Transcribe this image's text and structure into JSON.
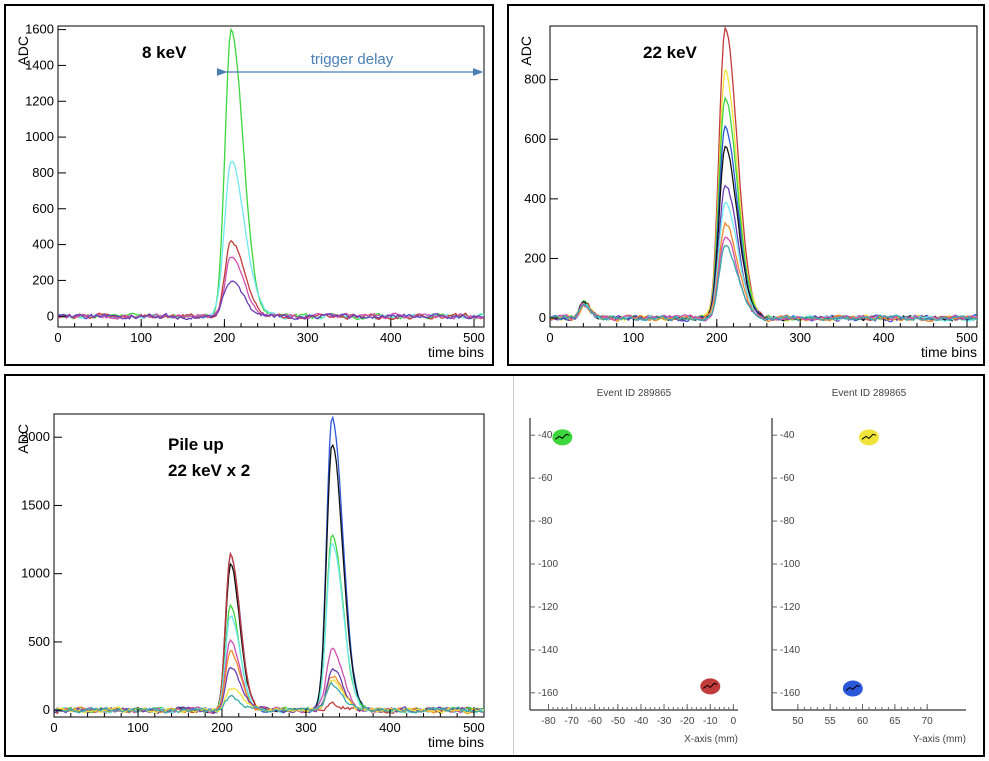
{
  "colors": {
    "green": "#3dd63d",
    "cyan": "#6fe8ef",
    "red": "#c23b3b",
    "magenta": "#d050b0",
    "purple": "#6a3fb5",
    "blue": "#2b57d9",
    "black": "#111111",
    "yellow": "#f0e43a",
    "orange": "#f08a2a",
    "teal": "#3aa9a9",
    "arrow": "#4a7fb5"
  },
  "chart_data": [
    {
      "id": "plot-8kev",
      "type": "line",
      "title": "",
      "annotation": "8 keV",
      "trigger_label": "trigger delay",
      "trigger_range": [
        190,
        512
      ],
      "xlabel": "time bins",
      "ylabel": "ADC",
      "xlim": [
        0,
        512
      ],
      "ylim": [
        -60,
        1620
      ],
      "xticks": [
        0,
        100,
        200,
        300,
        400,
        500
      ],
      "yticks": [
        0,
        200,
        400,
        600,
        800,
        1000,
        1200,
        1400,
        1600
      ],
      "series": [
        {
          "name": "green",
          "color": "green",
          "peaks": [
            {
              "x": 208,
              "amp": 1600,
              "w": 9
            }
          ]
        },
        {
          "name": "cyan",
          "color": "cyan",
          "peaks": [
            {
              "x": 208,
              "amp": 870,
              "w": 10
            }
          ]
        },
        {
          "name": "red",
          "color": "red",
          "peaks": [
            {
              "x": 208,
              "amp": 430,
              "w": 9
            }
          ]
        },
        {
          "name": "magenta",
          "color": "magenta",
          "peaks": [
            {
              "x": 208,
              "amp": 340,
              "w": 9
            }
          ]
        },
        {
          "name": "purple",
          "color": "purple",
          "peaks": [
            {
              "x": 206,
              "amp": 200,
              "w": 9
            }
          ]
        }
      ]
    },
    {
      "id": "plot-22kev",
      "type": "line",
      "title": "",
      "annotation": "22 keV",
      "xlabel": "time bins",
      "ylabel": "ADC",
      "xlim": [
        0,
        512
      ],
      "ylim": [
        -30,
        980
      ],
      "xticks": [
        0,
        100,
        200,
        300,
        400,
        500
      ],
      "yticks": [
        0,
        200,
        400,
        600,
        800
      ],
      "series": [
        {
          "name": "red",
          "color": "red",
          "peaks": [
            {
              "x": 210,
              "amp": 975,
              "w": 9
            },
            {
              "x": 40,
              "amp": 50,
              "w": 5
            }
          ]
        },
        {
          "name": "yellow",
          "color": "yellow",
          "peaks": [
            {
              "x": 210,
              "amp": 830,
              "w": 9
            },
            {
              "x": 40,
              "amp": 48,
              "w": 5
            }
          ]
        },
        {
          "name": "green",
          "color": "green",
          "peaks": [
            {
              "x": 210,
              "amp": 745,
              "w": 9
            },
            {
              "x": 40,
              "amp": 52,
              "w": 5
            }
          ]
        },
        {
          "name": "blue",
          "color": "blue",
          "peaks": [
            {
              "x": 210,
              "amp": 640,
              "w": 9
            },
            {
              "x": 40,
              "amp": 46,
              "w": 5
            }
          ]
        },
        {
          "name": "black",
          "color": "black",
          "peaks": [
            {
              "x": 210,
              "amp": 570,
              "w": 9
            },
            {
              "x": 40,
              "amp": 55,
              "w": 5
            }
          ]
        },
        {
          "name": "purple",
          "color": "purple",
          "peaks": [
            {
              "x": 210,
              "amp": 450,
              "w": 9
            },
            {
              "x": 40,
              "amp": 44,
              "w": 5
            }
          ]
        },
        {
          "name": "cyan",
          "color": "cyan",
          "peaks": [
            {
              "x": 210,
              "amp": 390,
              "w": 9
            },
            {
              "x": 40,
              "amp": 50,
              "w": 5
            }
          ]
        },
        {
          "name": "orange",
          "color": "orange",
          "peaks": [
            {
              "x": 210,
              "amp": 320,
              "w": 9
            },
            {
              "x": 40,
              "amp": 42,
              "w": 5
            }
          ]
        },
        {
          "name": "magenta",
          "color": "magenta",
          "peaks": [
            {
              "x": 210,
              "amp": 280,
              "w": 9
            },
            {
              "x": 40,
              "amp": 47,
              "w": 5
            }
          ]
        },
        {
          "name": "teal",
          "color": "teal",
          "peaks": [
            {
              "x": 210,
              "amp": 240,
              "w": 9
            },
            {
              "x": 40,
              "amp": 45,
              "w": 5
            }
          ]
        }
      ]
    },
    {
      "id": "plot-pileup",
      "type": "line",
      "title": "",
      "annotation_line1": "Pile up",
      "annotation_line2": "22 keV x 2",
      "xlabel": "time bins",
      "ylabel": "ADC",
      "xlim": [
        0,
        512
      ],
      "ylim": [
        -50,
        2170
      ],
      "xticks": [
        0,
        100,
        200,
        300,
        400,
        500
      ],
      "yticks": [
        0,
        500,
        1000,
        1500,
        2000
      ],
      "series": [
        {
          "name": "blue",
          "color": "blue",
          "peaks": [
            {
              "x": 210,
              "amp": 1150,
              "w": 7
            },
            {
              "x": 331,
              "amp": 2150,
              "w": 8
            }
          ]
        },
        {
          "name": "black",
          "color": "black",
          "peaks": [
            {
              "x": 210,
              "amp": 1070,
              "w": 7
            },
            {
              "x": 331,
              "amp": 1960,
              "w": 8
            }
          ]
        },
        {
          "name": "red",
          "color": "red",
          "peaks": [
            {
              "x": 210,
              "amp": 1170,
              "w": 7
            },
            {
              "x": 331,
              "amp": 40,
              "w": 8
            }
          ]
        },
        {
          "name": "green",
          "color": "green",
          "peaks": [
            {
              "x": 210,
              "amp": 760,
              "w": 7
            },
            {
              "x": 331,
              "amp": 1290,
              "w": 8
            }
          ]
        },
        {
          "name": "cyan",
          "color": "cyan",
          "peaks": [
            {
              "x": 210,
              "amp": 700,
              "w": 7
            },
            {
              "x": 331,
              "amp": 1240,
              "w": 8
            }
          ]
        },
        {
          "name": "magenta",
          "color": "magenta",
          "peaks": [
            {
              "x": 210,
              "amp": 520,
              "w": 7
            },
            {
              "x": 331,
              "amp": 450,
              "w": 8
            }
          ]
        },
        {
          "name": "orange",
          "color": "orange",
          "peaks": [
            {
              "x": 210,
              "amp": 440,
              "w": 7
            },
            {
              "x": 331,
              "amp": 250,
              "w": 8
            }
          ]
        },
        {
          "name": "purple",
          "color": "purple",
          "peaks": [
            {
              "x": 210,
              "amp": 340,
              "w": 7
            },
            {
              "x": 331,
              "amp": 300,
              "w": 8
            }
          ]
        },
        {
          "name": "yellow",
          "color": "yellow",
          "peaks": [
            {
              "x": 210,
              "amp": 160,
              "w": 7
            },
            {
              "x": 331,
              "amp": 220,
              "w": 8
            }
          ]
        },
        {
          "name": "teal",
          "color": "teal",
          "peaks": [
            {
              "x": 210,
              "amp": 100,
              "w": 7
            },
            {
              "x": 331,
              "amp": 180,
              "w": 8
            }
          ]
        }
      ]
    },
    {
      "id": "plot-event-x",
      "type": "scatter",
      "title": "Event ID 289865",
      "xlabel": "X-axis (mm)",
      "ylabel": "",
      "xlim": [
        -88,
        2
      ],
      "ylim": [
        -168,
        -32
      ],
      "xticks": [
        -80,
        -70,
        -60,
        -50,
        -40,
        -30,
        -20,
        -10,
        0
      ],
      "yticks": [
        -40,
        -60,
        -80,
        -100,
        -120,
        -140,
        -160
      ],
      "clusters": [
        {
          "name": "green-cluster",
          "color": "green",
          "x": -74,
          "y": -41
        },
        {
          "name": "red-cluster",
          "color": "red",
          "x": -10,
          "y": -157
        }
      ]
    },
    {
      "id": "plot-event-y",
      "type": "scatter",
      "title": "Event ID 289865",
      "xlabel": "Y-axis (mm)",
      "ylabel": "",
      "xlim": [
        46,
        76
      ],
      "ylim": [
        -168,
        -32
      ],
      "xticks": [
        50,
        55,
        60,
        65,
        70
      ],
      "yticks": [
        -40,
        -60,
        -80,
        -100,
        -120,
        -140,
        -160
      ],
      "clusters": [
        {
          "name": "yellow-cluster",
          "color": "yellow",
          "x": 61,
          "y": -41
        },
        {
          "name": "blue-cluster",
          "color": "blue",
          "x": 58.5,
          "y": -158
        }
      ]
    }
  ]
}
